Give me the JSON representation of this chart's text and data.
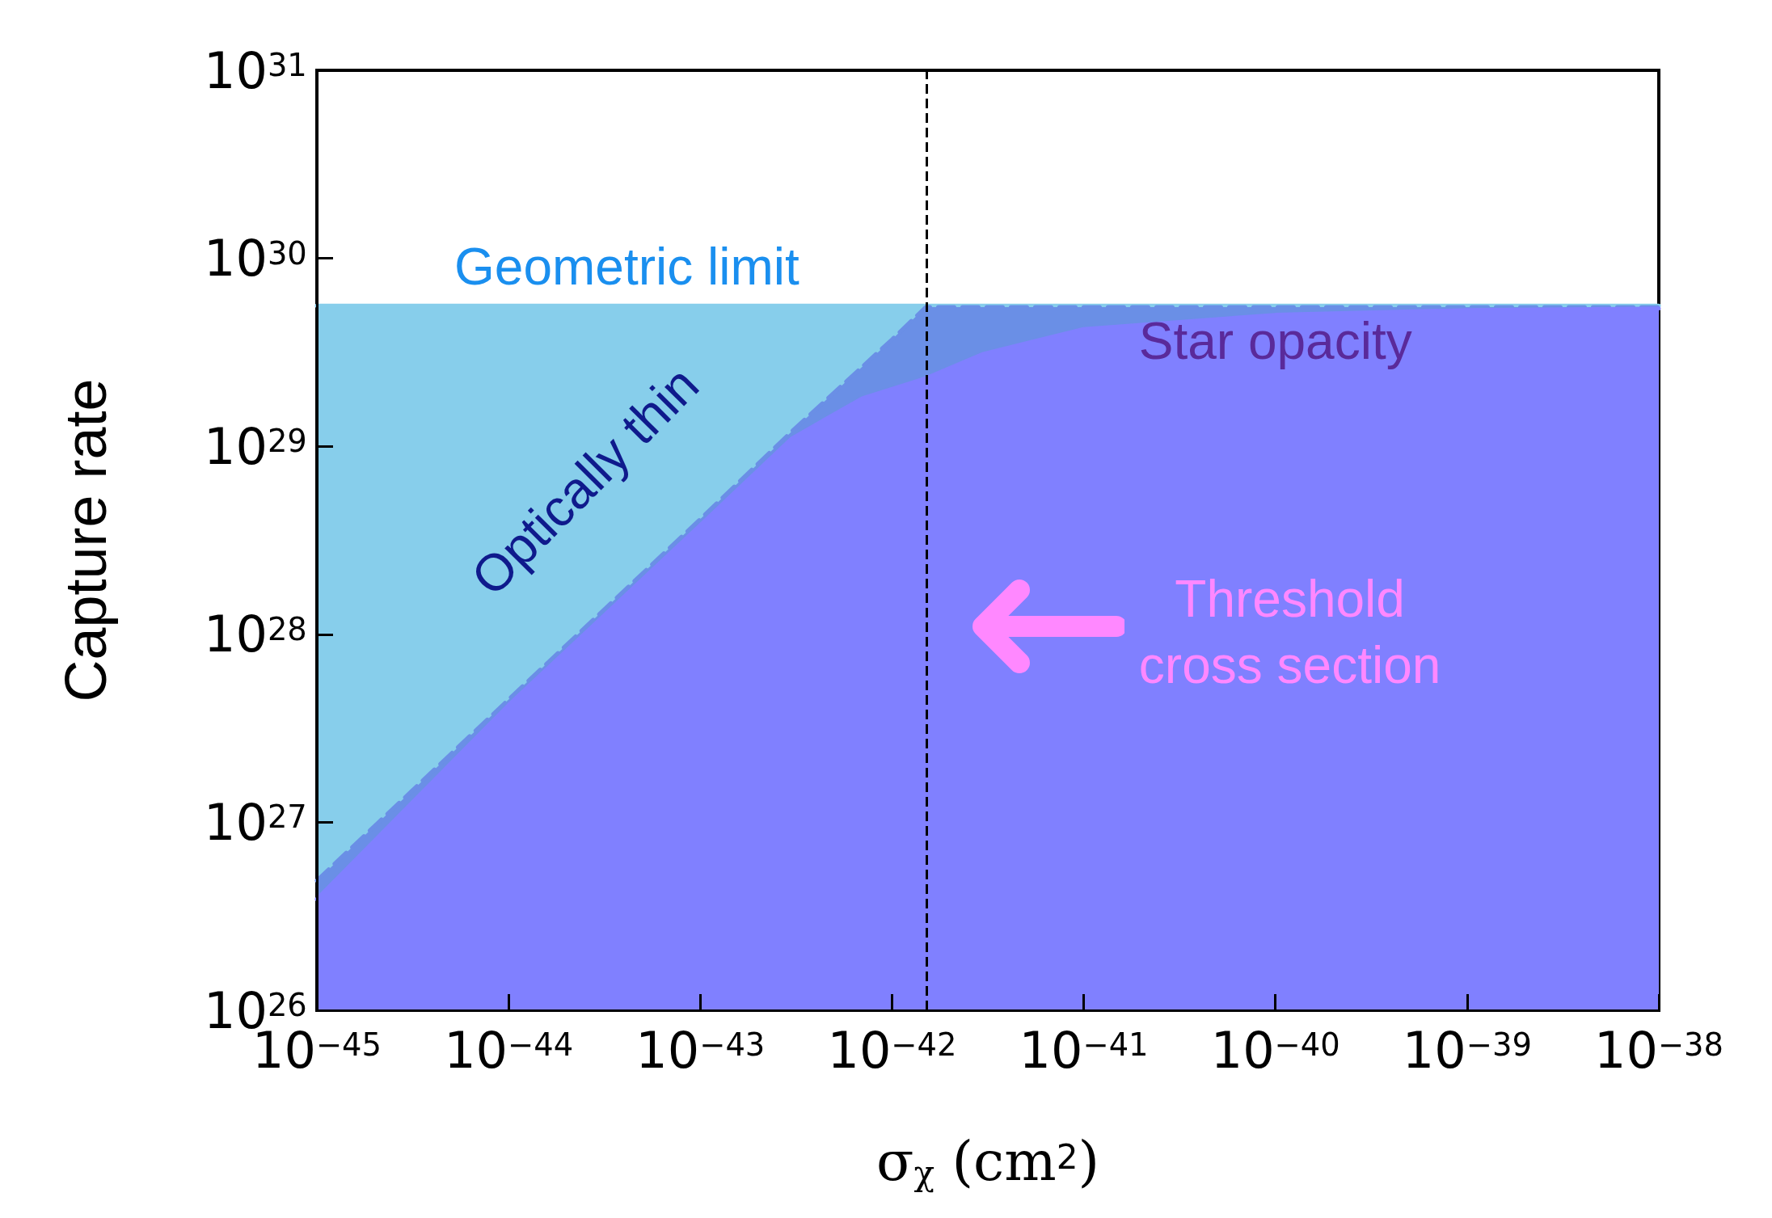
{
  "chart_data": {
    "type": "area",
    "xlabel": "σ$_{χ}$ (cm$^{2}$)",
    "ylabel": "Capture rate",
    "log": "xy",
    "grid": false,
    "legend": false,
    "xlim": [
      1e-45,
      1e-38
    ],
    "ylim": [
      1e+26,
      1e+31
    ],
    "xticks": [
      {
        "value": 1e-45,
        "label": "10$^{−45}$"
      },
      {
        "value": 1e-44,
        "label": "10$^{−44}$"
      },
      {
        "value": 1e-43,
        "label": "10$^{−43}$"
      },
      {
        "value": 1e-42,
        "label": "10$^{−42}$"
      },
      {
        "value": 1e-41,
        "label": "10$^{−41}$"
      },
      {
        "value": 1e-40,
        "label": "10$^{−40}$"
      },
      {
        "value": 1e-39,
        "label": "10$^{−39}$"
      },
      {
        "value": 1e-38,
        "label": "10$^{−38}$"
      }
    ],
    "yticks": [
      {
        "value": 1e+26,
        "label": "10$^{26}$"
      },
      {
        "value": 1e+27,
        "label": "10$^{27}$"
      },
      {
        "value": 1e+28,
        "label": "10$^{28}$"
      },
      {
        "value": 1e+29,
        "label": "10$^{29}$"
      },
      {
        "value": 1e+30,
        "label": "10$^{30}$"
      },
      {
        "value": 1e+31,
        "label": "10$^{31}$"
      }
    ],
    "series": [
      {
        "name": "Geometric limit",
        "color": "#87ceeb",
        "line_style": "solid",
        "x": [
          1e-45,
          1e-38
        ],
        "values": [
          5.6e+29,
          5.6e+29
        ]
      },
      {
        "name": "Optically thin",
        "color": "#6a8fe6",
        "line_style": "dashed",
        "x": [
          1e-45,
          1e-44,
          1e-43,
          3e-43,
          1e-42,
          1.5e-42,
          1e-41,
          1e-40,
          1e-39,
          1e-38
        ],
        "values": [
          4.9e+26,
          4.5e+27,
          4.1e+28,
          1.2e+29,
          3.7e+29,
          5.5e+29,
          5.5e+29,
          5.5e+29,
          5.5e+29,
          5.5e+29
        ]
      },
      {
        "name": "Star opacity",
        "color": "#8080ff",
        "line_style": "solid",
        "x": [
          1e-45,
          1e-44,
          1e-43,
          3e-43,
          7e-43,
          1.5e-42,
          3e-42,
          1e-41,
          1e-40,
          1e-39,
          1e-38
        ],
        "values": [
          3.9e+26,
          4.2e+27,
          3.8e+28,
          1.1e+29,
          1.8e+29,
          2.3e+29,
          3.1e+29,
          4.2e+29,
          5e+29,
          5.3e+29,
          5.4e+29
        ]
      }
    ],
    "annotations": [
      "Threshold cross section"
    ],
    "ref_lines": [
      {
        "axis": "x",
        "value": 1.5e-42,
        "color": "#000000",
        "line_style": "dashed"
      }
    ]
  }
}
